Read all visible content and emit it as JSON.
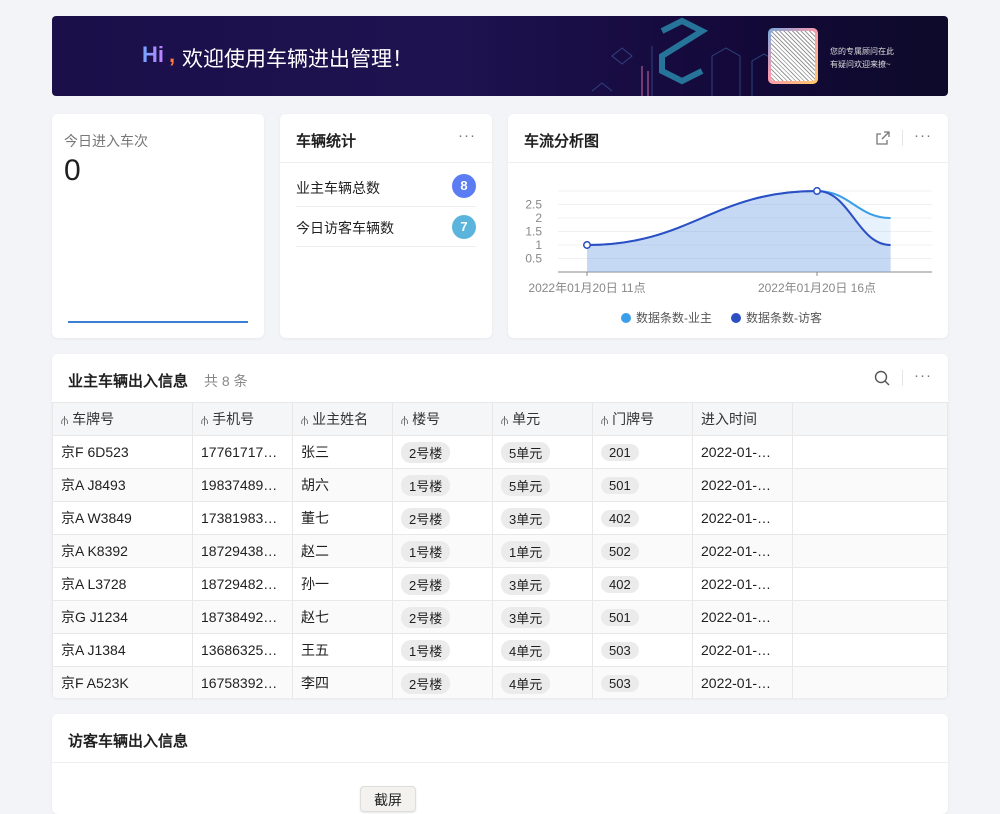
{
  "banner": {
    "hi": "Hi",
    "comma": ",",
    "welcome": "欢迎使用车辆进出管理！",
    "hint_line1": "您的专属顾问在此",
    "hint_line2": "有疑问欢迎来撩~"
  },
  "today_entries": {
    "label": "今日进入车次",
    "value": "0"
  },
  "vehicle_stats": {
    "title": "车辆统计",
    "more": "···",
    "items": [
      {
        "label": "业主车辆总数",
        "count": "8",
        "color": "#5b7cf2"
      },
      {
        "label": "今日访客车辆数",
        "count": "7",
        "color": "#5bb4dc"
      }
    ]
  },
  "traffic_chart": {
    "title": "车流分析图",
    "more": "···"
  },
  "chart_data": {
    "type": "area",
    "x_hours": [
      11,
      16,
      17.6
    ],
    "x_tick_labels": [
      "2022年01月20日 11点",
      "2022年01月20日 16点"
    ],
    "y_ticks": [
      "0.5",
      "1",
      "1.5",
      "2",
      "2.5"
    ],
    "ylim": [
      0,
      3
    ],
    "grid": true,
    "legend": "bottom",
    "series": [
      {
        "name": "数据条数-业主",
        "values": [
          1,
          3,
          2
        ],
        "color": "#3a9ee8"
      },
      {
        "name": "数据条数-访客",
        "values": [
          1,
          3,
          1
        ],
        "color": "#2d4fc4"
      }
    ]
  },
  "owner_table": {
    "title": "业主车辆出入信息",
    "count": "共 8 条",
    "more": "···",
    "columns": [
      "车牌号",
      "手机号",
      "业主姓名",
      "楼号",
      "单元",
      "门牌号",
      "进入时间"
    ],
    "rows": [
      [
        "京F 6D523",
        "17761717…",
        "张三",
        "2号楼",
        "5单元",
        "201",
        "2022-01-…"
      ],
      [
        "京A J8493",
        "19837489…",
        "胡六",
        "1号楼",
        "5单元",
        "501",
        "2022-01-…"
      ],
      [
        "京A W3849",
        "17381983…",
        "董七",
        "2号楼",
        "3单元",
        "402",
        "2022-01-…"
      ],
      [
        "京A K8392",
        "18729438…",
        "赵二",
        "1号楼",
        "1单元",
        "502",
        "2022-01-…"
      ],
      [
        "京A L3728",
        "18729482…",
        "孙一",
        "2号楼",
        "3单元",
        "402",
        "2022-01-…"
      ],
      [
        "京G J1234",
        "18738492…",
        "赵七",
        "2号楼",
        "3单元",
        "501",
        "2022-01-…"
      ],
      [
        "京A J1384",
        "13686325…",
        "王五",
        "1号楼",
        "4单元",
        "503",
        "2022-01-…"
      ],
      [
        "京F A523K",
        "16758392…",
        "李四",
        "2号楼",
        "4单元",
        "503",
        "2022-01-…"
      ]
    ]
  },
  "visitor_table": {
    "title": "访客车辆出入信息",
    "screenshot_button": "截屏"
  }
}
